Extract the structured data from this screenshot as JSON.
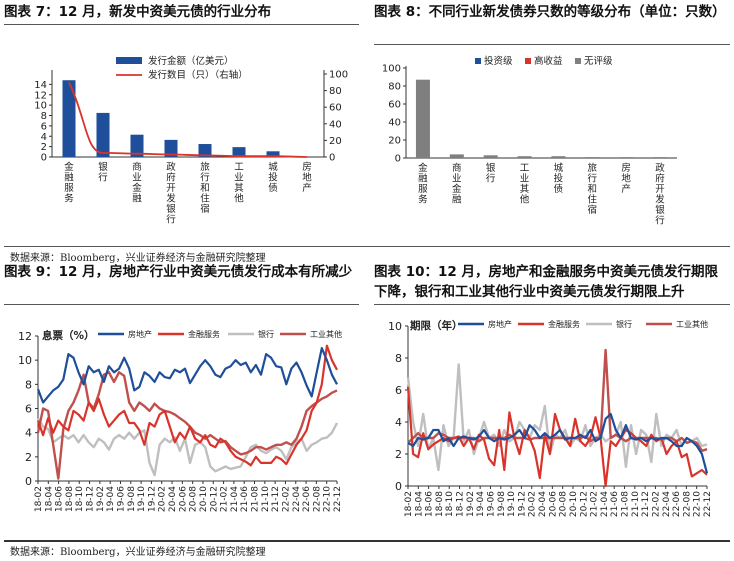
{
  "titles": {
    "fig7": "图表 7：12 月，新发中资美元债的行业分布",
    "fig8": "图表 8：不同行业新发债券只数的等级分布（单位：只数）",
    "fig9": "图表 9：12 月，房地产行业中资美元债发行成本有所减少",
    "fig10": "图表 10：12 月，房地产和金融服务中资美元债发行期限下降，银行和工业其他行业中资美元债发行期限上升"
  },
  "sources": {
    "top": "数据来源：Bloomberg，兴业证券经济与金融研究院整理",
    "bottom": "数据来源：Bloomberg，兴业证券经济与金融研究院整理"
  },
  "colors": {
    "navy": "#1F4E9A",
    "red": "#D9342B",
    "gray": "#BFBFBF",
    "darkgray": "#7F7F7F",
    "darkred": "#C0504D"
  },
  "chart_data": [
    {
      "id": "fig7",
      "type": "bar",
      "categories": [
        "金融服务",
        "银行",
        "商业金融",
        "政府开发银行",
        "旅行和住宿",
        "工业其他",
        "城投债",
        "房地产"
      ],
      "series": [
        {
          "name": "发行金额（亿美元）",
          "type": "bar",
          "axis": "left",
          "values": [
            14.8,
            8.5,
            4.3,
            3.3,
            2.5,
            1.9,
            1.1,
            0
          ]
        },
        {
          "name": "发行数目（只）（右轴）",
          "type": "line",
          "axis": "right",
          "values": [
            90,
            5,
            4,
            3,
            2,
            1,
            1,
            0
          ]
        }
      ],
      "ylim": [
        0,
        16
      ],
      "yticks": [
        0,
        2,
        4,
        6,
        8,
        10,
        12,
        14
      ],
      "y2lim": [
        0,
        100
      ],
      "y2ticks": [
        0,
        20,
        40,
        60,
        80,
        100
      ],
      "legend": "top-center"
    },
    {
      "id": "fig8",
      "type": "bar",
      "categories": [
        "金融服务",
        "商业金融",
        "银行",
        "工业其他",
        "城投债",
        "旅行和住宿",
        "房地产",
        "政府开发银行"
      ],
      "series": [
        {
          "name": "投资级",
          "values": [
            0,
            0,
            0,
            0,
            0,
            0,
            0,
            0
          ]
        },
        {
          "name": "高收益",
          "values": [
            0,
            0,
            0,
            0,
            0,
            0,
            0,
            0
          ]
        },
        {
          "name": "无评级",
          "values": [
            87,
            4,
            3,
            2,
            2,
            1,
            1,
            1
          ]
        }
      ],
      "ylim": [
        0,
        100
      ],
      "yticks": [
        0,
        20,
        40,
        60,
        80,
        100
      ],
      "legend": "top-center"
    },
    {
      "id": "fig9",
      "type": "line",
      "ylabel": "息票（%）",
      "x_ticks": [
        "18-02",
        "18-04",
        "18-06",
        "18-08",
        "18-10",
        "18-12",
        "19-02",
        "19-04",
        "19-06",
        "19-08",
        "19-10",
        "19-12",
        "20-02",
        "20-04",
        "20-06",
        "20-08",
        "20-10",
        "20-12",
        "21-02",
        "21-04",
        "21-06",
        "21-08",
        "21-10",
        "21-12",
        "22-02",
        "22-04",
        "22-06",
        "22-08",
        "22-10",
        "22-12"
      ],
      "ylim": [
        0,
        12
      ],
      "yticks": [
        0,
        2,
        4,
        6,
        8,
        10,
        12
      ],
      "series": [
        {
          "name": "房地产",
          "values": [
            7.6,
            6.5,
            7.0,
            7.5,
            7.8,
            8.4,
            10.5,
            10.2,
            9.0,
            8.0,
            9.5,
            9.0,
            9.2,
            8.2,
            9.5,
            9.0,
            9.3,
            10.2,
            9.3,
            7.5,
            7.8,
            9.0,
            8.7,
            8.2,
            9.0,
            8.6,
            8.5,
            9.2,
            9.0,
            9.3,
            8.1,
            8.8,
            9.5,
            10.0,
            9.5,
            8.8,
            8.6,
            9.3,
            9.5,
            10.0,
            9.6,
            9.8,
            9.0,
            9.6,
            8.8,
            10.5,
            10.2,
            9.5,
            9.4,
            8.0,
            9.3,
            9.8,
            9.0,
            7.9,
            7.0,
            9.0,
            11.0,
            10.0,
            8.8,
            8.0
          ]
        },
        {
          "name": "金融服务",
          "values": [
            5.0,
            3.8,
            5.2,
            4.0,
            5.0,
            4.5,
            4.2,
            5.8,
            5.5,
            5.0,
            6.5,
            5.8,
            6.8,
            5.5,
            4.5,
            5.0,
            5.5,
            5.8,
            4.8,
            4.8,
            4.2,
            3.0,
            4.8,
            4.5,
            5.5,
            5.8,
            4.5,
            3.2,
            4.0,
            3.5,
            4.5,
            3.5,
            3.2,
            3.8,
            3.0,
            2.8,
            3.5,
            3.2,
            2.5,
            2.0,
            1.8,
            1.6,
            1.3,
            2.0,
            1.5,
            1.5,
            1.5,
            2.0,
            1.8,
            1.4,
            2.2,
            3.0,
            3.5,
            4.2,
            5.8,
            6.5,
            8.0,
            11.2,
            10.0,
            9.2
          ]
        },
        {
          "name": "银行",
          "values": [
            5.2,
            4.5,
            4.3,
            3.2,
            3.5,
            3.8,
            3.5,
            3.8,
            3.2,
            3.8,
            3.2,
            2.8,
            3.5,
            3.2,
            2.6,
            3.5,
            3.8,
            3.5,
            4.0,
            3.5,
            4.0,
            4.2,
            1.5,
            0.5,
            3.0,
            3.5,
            3.2,
            3.6,
            2.5,
            3.5,
            1.5,
            3.0,
            3.2,
            2.8,
            1.2,
            0.8,
            1.0,
            1.2,
            1.0,
            1.1,
            1.2,
            2.0,
            2.8,
            3.0,
            2.5,
            2.3,
            2.6,
            2.8,
            2.5,
            1.8,
            2.8,
            3.2,
            3.5,
            2.5,
            3.0,
            3.2,
            3.5,
            3.6,
            4.0,
            4.8
          ]
        },
        {
          "name": "工业其他",
          "values": [
            4.0,
            6.0,
            5.8,
            3.0,
            0.2,
            4.3,
            5.8,
            6.5,
            7.5,
            8.8,
            6.5,
            6.0,
            7.2,
            8.8,
            9.0,
            8.2,
            9.0,
            8.7,
            6.5,
            5.8,
            6.5,
            6.2,
            5.8,
            6.4,
            6.0,
            5.8,
            5.7,
            5.5,
            5.2,
            4.9,
            4.5,
            4.0,
            3.8,
            3.5,
            3.8,
            3.5,
            3.2,
            3.3,
            2.8,
            2.5,
            2.2,
            2.3,
            2.5,
            2.8,
            2.8,
            2.6,
            2.8,
            3.0,
            3.0,
            3.2,
            3.0,
            3.5,
            4.5,
            5.8,
            6.2,
            6.5,
            6.8,
            7.0,
            7.3,
            7.5
          ]
        }
      ],
      "legend": "top"
    },
    {
      "id": "fig10",
      "type": "line",
      "ylabel": "期限（年）",
      "x_ticks": [
        "18-02",
        "18-04",
        "18-06",
        "18-08",
        "18-10",
        "18-12",
        "19-02",
        "19-04",
        "19-06",
        "19-08",
        "19-10",
        "19-12",
        "20-02",
        "20-04",
        "20-06",
        "20-08",
        "20-10",
        "20-12",
        "21-02",
        "21-04",
        "21-06",
        "21-08",
        "21-10",
        "21-12",
        "22-02",
        "22-04",
        "22-06",
        "22-08",
        "22-10",
        "22-12"
      ],
      "ylim": [
        0,
        10
      ],
      "yticks": [
        0,
        2,
        4,
        6,
        8,
        10
      ],
      "series": [
        {
          "name": "房地产",
          "values": [
            2.7,
            2.5,
            3.0,
            2.9,
            3.0,
            3.5,
            3.5,
            2.8,
            3.0,
            2.5,
            3.0,
            3.1,
            3.0,
            2.9,
            3.1,
            3.5,
            3.0,
            2.8,
            3.0,
            2.9,
            3.0,
            3.2,
            3.5,
            3.0,
            3.8,
            3.5,
            3.0,
            3.3,
            3.0,
            3.2,
            3.5,
            2.9,
            3.0,
            3.0,
            3.2,
            3.0,
            3.5,
            2.8,
            3.0,
            4.2,
            4.5,
            3.5,
            3.0,
            3.8,
            3.0,
            2.9,
            3.0,
            2.8,
            3.0,
            2.9,
            3.0,
            3.0,
            2.8,
            2.5,
            2.5,
            3.0,
            2.8,
            2.5,
            2.0,
            0.8
          ]
        },
        {
          "name": "金融服务",
          "values": [
            6.2,
            2.0,
            1.8,
            3.3,
            2.3,
            2.6,
            2.8,
            3.0,
            2.8,
            3.0,
            3.1,
            2.5,
            3.0,
            2.3,
            3.2,
            2.9,
            1.7,
            1.3,
            3.5,
            1.0,
            4.6,
            3.0,
            2.0,
            3.5,
            3.0,
            2.2,
            0.5,
            3.2,
            2.0,
            4.5,
            3.5,
            3.0,
            2.5,
            4.2,
            2.8,
            2.5,
            3.0,
            4.3,
            3.0,
            0.0,
            2.8,
            2.5,
            3.0,
            3.5,
            3.3,
            3.0,
            2.8,
            2.5,
            3.2,
            2.8,
            3.0,
            2.0,
            2.5,
            2.8,
            1.8,
            2.0,
            0.6,
            0.8,
            1.0,
            0.7
          ]
        },
        {
          "name": "银行",
          "values": [
            6.8,
            4.0,
            2.5,
            4.5,
            2.3,
            3.0,
            1.0,
            3.8,
            2.5,
            3.0,
            7.6,
            2.8,
            3.5,
            2.0,
            3.0,
            4.0,
            3.0,
            3.2,
            2.5,
            3.5,
            2.8,
            3.0,
            4.0,
            3.5,
            3.0,
            3.8,
            3.5,
            5.0,
            2.0,
            3.2,
            3.0,
            3.5,
            2.5,
            3.0,
            2.8,
            3.8,
            2.5,
            3.0,
            3.2,
            2.8,
            3.0,
            3.2,
            4.0,
            1.2,
            3.8,
            2.0,
            3.5,
            3.2,
            1.5,
            4.5,
            2.5,
            3.2,
            3.0,
            3.5,
            2.5,
            3.0,
            2.8,
            3.0,
            2.5,
            2.6
          ]
        },
        {
          "name": "工业其他",
          "values": [
            2.7,
            3.0,
            3.3,
            3.0,
            3.0,
            3.0,
            3.3,
            3.2,
            3.0,
            3.0,
            3.0,
            3.0,
            3.0,
            3.0,
            2.8,
            3.0,
            3.0,
            3.0,
            3.0,
            3.0,
            3.2,
            3.0,
            3.0,
            3.0,
            2.9,
            3.0,
            3.0,
            3.0,
            3.0,
            3.0,
            3.0,
            3.0,
            3.0,
            3.0,
            3.0,
            3.1,
            2.8,
            3.0,
            3.0,
            8.5,
            3.0,
            3.2,
            3.0,
            2.8,
            3.0,
            3.0,
            3.0,
            3.0,
            3.0,
            3.0,
            2.9,
            3.0,
            3.0,
            2.8,
            3.0,
            2.7,
            2.8,
            2.7,
            2.2,
            2.3
          ]
        }
      ],
      "legend": "top"
    }
  ]
}
